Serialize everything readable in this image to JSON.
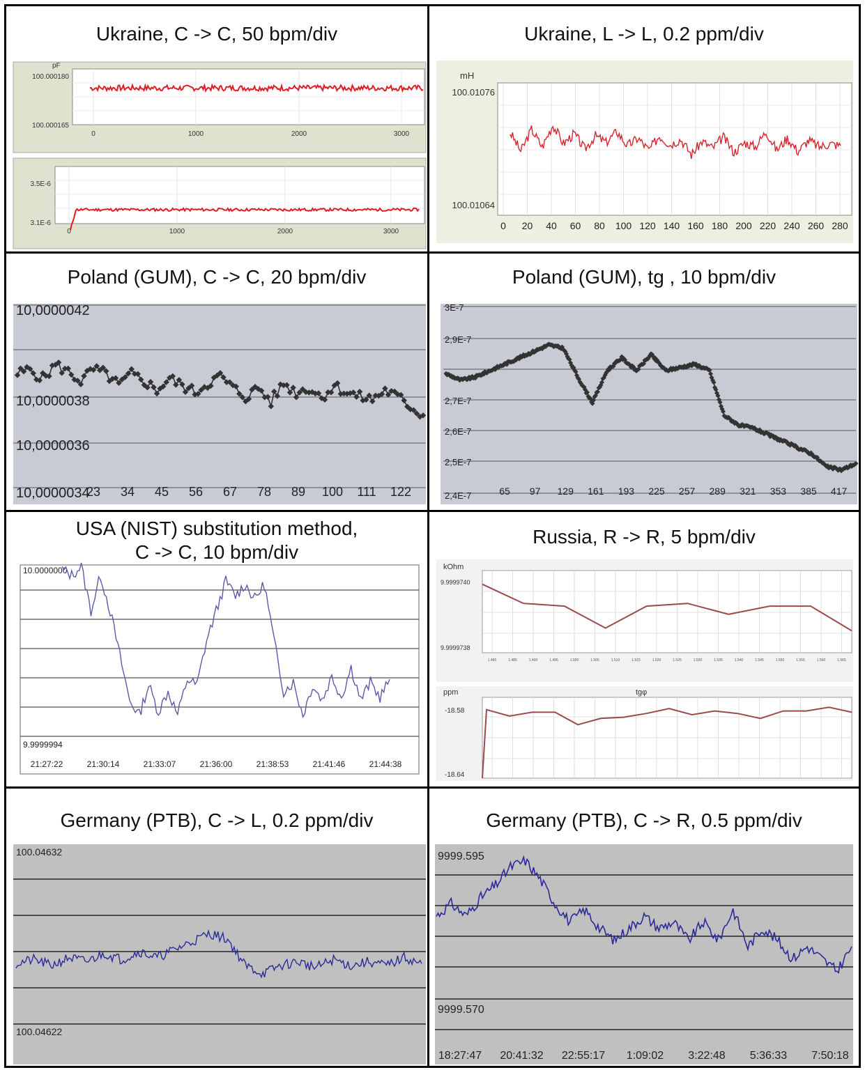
{
  "panels": [
    {
      "title": "Ukraine, C -> C, 50 bpm/div",
      "subplots": [
        {
          "unit": "pF",
          "y_ticks": [
            "100.000180",
            "100.000165"
          ],
          "x_ticks": [
            "0",
            "1000",
            "2000",
            "3000"
          ],
          "line_color": "#e01c24",
          "chart_data": {
            "type": "line",
            "x_range": [
              0,
              3300
            ],
            "y_range": [
              100.000165,
              100.00018
            ],
            "approx_level": 100.000175,
            "noise": 8e-07
          }
        },
        {
          "unit": "",
          "y_ticks": [
            "3.5E-6",
            "3.1E-6"
          ],
          "x_ticks": [
            "0",
            "1000",
            "2000",
            "3000"
          ],
          "line_color": "#e01c24",
          "chart_data": {
            "type": "line",
            "x_range": [
              0,
              3300
            ],
            "y_range": [
              3.1e-06,
              3.5e-06
            ],
            "approx_level": 3.2e-06,
            "noise": 1e-08
          }
        }
      ]
    },
    {
      "title": "Ukraine, L -> L, 0.2 ppm/div",
      "unit": "mH",
      "y_ticks": [
        "100.01076",
        "100.01064"
      ],
      "x_ticks": [
        "0",
        "20",
        "40",
        "60",
        "80",
        "100",
        "120",
        "140",
        "160",
        "180",
        "200",
        "220",
        "240",
        "260",
        "280"
      ],
      "line_color": "#d9232e",
      "chart_data": {
        "type": "line",
        "x_range": [
          0,
          280
        ],
        "y_range": [
          100.01064,
          100.01076
        ],
        "values": [
          100.010715,
          100.010698,
          100.010718,
          100.010702,
          100.010722,
          100.010705,
          100.010714,
          100.0107,
          100.010712,
          100.010706,
          100.010716,
          100.010703,
          100.01071,
          100.010699,
          100.010712,
          100.010704,
          100.010709,
          100.010695,
          100.010707,
          100.010701,
          100.010711,
          100.010697,
          100.010706,
          100.010702,
          100.010716,
          100.010699,
          100.01071,
          100.010698,
          100.010708,
          100.010702,
          100.010705,
          100.010703
        ]
      }
    },
    {
      "title": "Poland (GUM), C -> C, 20 bpm/div",
      "y_ticks": [
        "10,0000042",
        "10,0000038",
        "10,0000036",
        "10,0000034"
      ],
      "x_ticks": [
        "23",
        "34",
        "45",
        "56",
        "67",
        "78",
        "89",
        "100",
        "111",
        "122"
      ],
      "line_color": "#333333",
      "chart_data": {
        "type": "line",
        "x_range": [
          12,
          133
        ],
        "y_range": [
          10.0000034,
          10.0000042
        ],
        "values": [
          10.0000039,
          10.00000392,
          10.00000388,
          10.00000394,
          10.00000391,
          10.00000387,
          10.00000392,
          10.0000039,
          10.00000385,
          10.0000039,
          10.00000387,
          10.00000383,
          10.00000388,
          10.00000385,
          10.00000382,
          10.00000386,
          10.00000389,
          10.00000384,
          10.0000038,
          10.00000384,
          10.00000378,
          10.00000386,
          10.00000382,
          10.00000384,
          10.0000038,
          10.00000385,
          10.00000382,
          10.0000038,
          10.00000379,
          10.00000383,
          10.0000038,
          10.00000376,
          10.00000372
        ]
      }
    },
    {
      "title": "Poland (GUM), tg , 10 bpm/div",
      "y_ticks": [
        "3E-7",
        "2,9E-7",
        "2,7E-7",
        "2,6E-7",
        "2,5E-7",
        "2,4E-7"
      ],
      "x_ticks": [
        "65",
        "97",
        "129",
        "161",
        "193",
        "225",
        "257",
        "289",
        "321",
        "353",
        "385",
        "417"
      ],
      "line_color": "#333333",
      "chart_data": {
        "type": "line",
        "x_range": [
          33,
          433
        ],
        "y_range": [
          2.4e-07,
          3e-07
        ],
        "values": [
          2.79e-07,
          2.77e-07,
          2.78e-07,
          2.8e-07,
          2.82e-07,
          2.84e-07,
          2.86e-07,
          2.88e-07,
          2.87e-07,
          2.78e-07,
          2.7e-07,
          2.8e-07,
          2.84e-07,
          2.8e-07,
          2.85e-07,
          2.8e-07,
          2.81e-07,
          2.82e-07,
          2.8e-07,
          2.66e-07,
          2.63e-07,
          2.62e-07,
          2.6e-07,
          2.58e-07,
          2.56e-07,
          2.54e-07,
          2.5e-07,
          2.49e-07,
          2.51e-07
        ]
      }
    },
    {
      "title_line1": "USA (NIST) substitution method,",
      "title_line2": "C -> C, 10 bpm/div",
      "y_ticks": [
        "10.0000000",
        "9.9999994"
      ],
      "x_ticks": [
        "21:27:22",
        "21:30:14",
        "21:33:07",
        "21:36:00",
        "21:38:53",
        "21:41:46",
        "21:44:38"
      ],
      "line_color": "#5a5aa8",
      "chart_data": {
        "type": "line",
        "y_range": [
          9.9999994,
          10.0
        ],
        "values": [
          9.99999999,
          9.99999997,
          10.0,
          9.99999985,
          9.99999997,
          9.99999985,
          9.9999997,
          9.99999955,
          9.9999995,
          9.9999996,
          9.99999951,
          9.99999958,
          9.9999995,
          9.99999962,
          9.9999996,
          9.99999975,
          9.99999985,
          9.99999995,
          9.9999999,
          9.99999994,
          9.99999989,
          9.99999994,
          9.99999975,
          9.99999958,
          9.99999961,
          9.9999995,
          9.9999996,
          9.99999955,
          9.99999963,
          9.99999956,
          9.99999966,
          9.99999955,
          9.99999961,
          9.99999956,
          9.99999962
        ]
      }
    },
    {
      "title": "Russia, R -> R, 5 bpm/div",
      "subplots": [
        {
          "unit": "kOhm",
          "y_ticks": [
            "9.9999740",
            "9.9999738"
          ],
          "x_ticks": [
            "1.480",
            "1.485",
            "1.490",
            "1.495",
            "1.500",
            "1.505",
            "1.510",
            "1.515",
            "1.520",
            "1.525",
            "1.530",
            "1.535",
            "1.540",
            "1.545",
            "1.550",
            "1.555",
            "1.560",
            "1.565"
          ],
          "line_color": "#9a4a4a",
          "chart_data": {
            "type": "line",
            "x": [
              1.48,
              1.49,
              1.5,
              1.51,
              1.52,
              1.53,
              1.54,
              1.55,
              1.56,
              1.57
            ],
            "values": [
              9.99997405,
              9.99997398,
              9.99997397,
              9.99997389,
              9.99997397,
              9.99997398,
              9.99997394,
              9.99997397,
              9.99997397,
              9.99997388
            ]
          }
        },
        {
          "unit": "ppm",
          "label": "tgφ",
          "y_ticks": [
            "-18.58",
            "-18.64"
          ],
          "line_color": "#9a4a4a",
          "chart_data": {
            "type": "line",
            "values": [
              -18.585,
              -18.59,
              -18.587,
              -18.587,
              -18.597,
              -18.592,
              -18.591,
              -18.588,
              -18.584,
              -18.589,
              -18.586,
              -18.588,
              -18.592,
              -18.586,
              -18.586,
              -18.583,
              -18.587
            ]
          }
        }
      ]
    },
    {
      "title": "Germany (PTB), C -> L, 0.2 ppm/div",
      "y_ticks": [
        "100.04632",
        "100.04622"
      ],
      "line_color": "#2a2a9a",
      "chart_data": {
        "type": "line",
        "y_range": [
          100.04622,
          100.04632
        ],
        "values": [
          100.046263,
          100.046265,
          100.046262,
          100.046266,
          100.046264,
          100.046268,
          100.046265,
          100.046269,
          100.046266,
          100.04627,
          100.046274,
          100.046278,
          100.046275,
          100.046262,
          100.046258,
          100.046262,
          100.046264,
          100.046261,
          100.046265,
          100.046262,
          100.046264,
          100.046262,
          100.046266,
          100.046263
        ]
      }
    },
    {
      "title": "Germany (PTB), C -> R, 0.5 ppm/div",
      "y_ticks": [
        "9999.595",
        "9999.570"
      ],
      "x_ticks": [
        "18:27:47",
        "20:41:32",
        "22:55:17",
        "1:09:02",
        "3:22:48",
        "5:36:33",
        "7:50:18"
      ],
      "line_color": "#2a2a9a",
      "chart_data": {
        "type": "line",
        "y_range": [
          9999.57,
          9999.595
        ],
        "values": [
          9999.584,
          9999.586,
          9999.584,
          9999.587,
          9999.589,
          9999.592,
          9999.593,
          9999.59,
          9999.586,
          9999.583,
          9999.585,
          9999.582,
          9999.58,
          9999.582,
          9999.584,
          9999.582,
          9999.583,
          9999.58,
          9999.583,
          9999.58,
          9999.585,
          9999.579,
          9999.582,
          9999.58,
          9999.577,
          9999.579,
          9999.577,
          9999.575,
          9999.579
        ]
      }
    }
  ]
}
